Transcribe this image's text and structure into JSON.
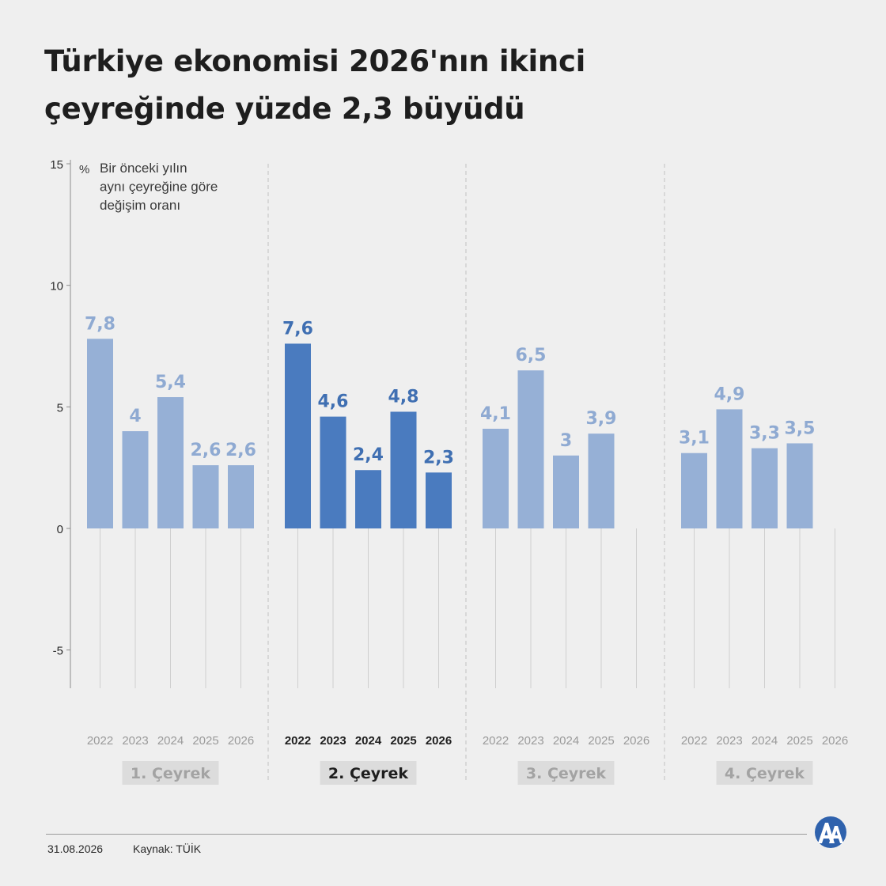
{
  "title_line1": "Türkiye ekonomisi 2026'nın ikinci",
  "title_line2": "çeyreğinde yüzde 2,3 büyüdü",
  "footer": {
    "date": "31.08.2026",
    "source": "Kaynak: TÜİK"
  },
  "logo_icon": "aa-logo-icon",
  "colors": {
    "highlight": "#4a7bbf",
    "muted": "#96b0d6",
    "highlight_label": "#3f6fb2",
    "muted_label": "#8faad2",
    "quarter_box": "#dcdcdc"
  },
  "chart_data": {
    "type": "bar",
    "ylabel": "%",
    "note": [
      "Bir önceki yılın",
      "aynı çeyreğine göre",
      "değişim oranı"
    ],
    "ylim": [
      -6.5,
      15
    ],
    "yticks": [
      15,
      10,
      5,
      0,
      -5
    ],
    "ytick_labels": [
      "15",
      "10",
      "5",
      "0",
      "-5"
    ],
    "years": [
      "2022",
      "2023",
      "2024",
      "2025",
      "2026"
    ],
    "highlight_group": 1,
    "groups": [
      {
        "label": "1. Çeyrek",
        "values": [
          7.8,
          4,
          5.4,
          2.6,
          2.6
        ],
        "labels": [
          "7,8",
          "4",
          "5,4",
          "2,6",
          "2,6"
        ]
      },
      {
        "label": "2. Çeyrek",
        "values": [
          7.6,
          4.6,
          2.4,
          4.8,
          2.3
        ],
        "labels": [
          "7,6",
          "4,6",
          "2,4",
          "4,8",
          "2,3"
        ]
      },
      {
        "label": "3. Çeyrek",
        "values": [
          4.1,
          6.5,
          3,
          3.9,
          null
        ],
        "labels": [
          "4,1",
          "6,5",
          "3",
          "3,9",
          ""
        ]
      },
      {
        "label": "4. Çeyrek",
        "values": [
          3.1,
          4.9,
          3.3,
          3.5,
          null
        ],
        "labels": [
          "3,1",
          "4,9",
          "3,3",
          "3,5",
          ""
        ]
      }
    ]
  }
}
